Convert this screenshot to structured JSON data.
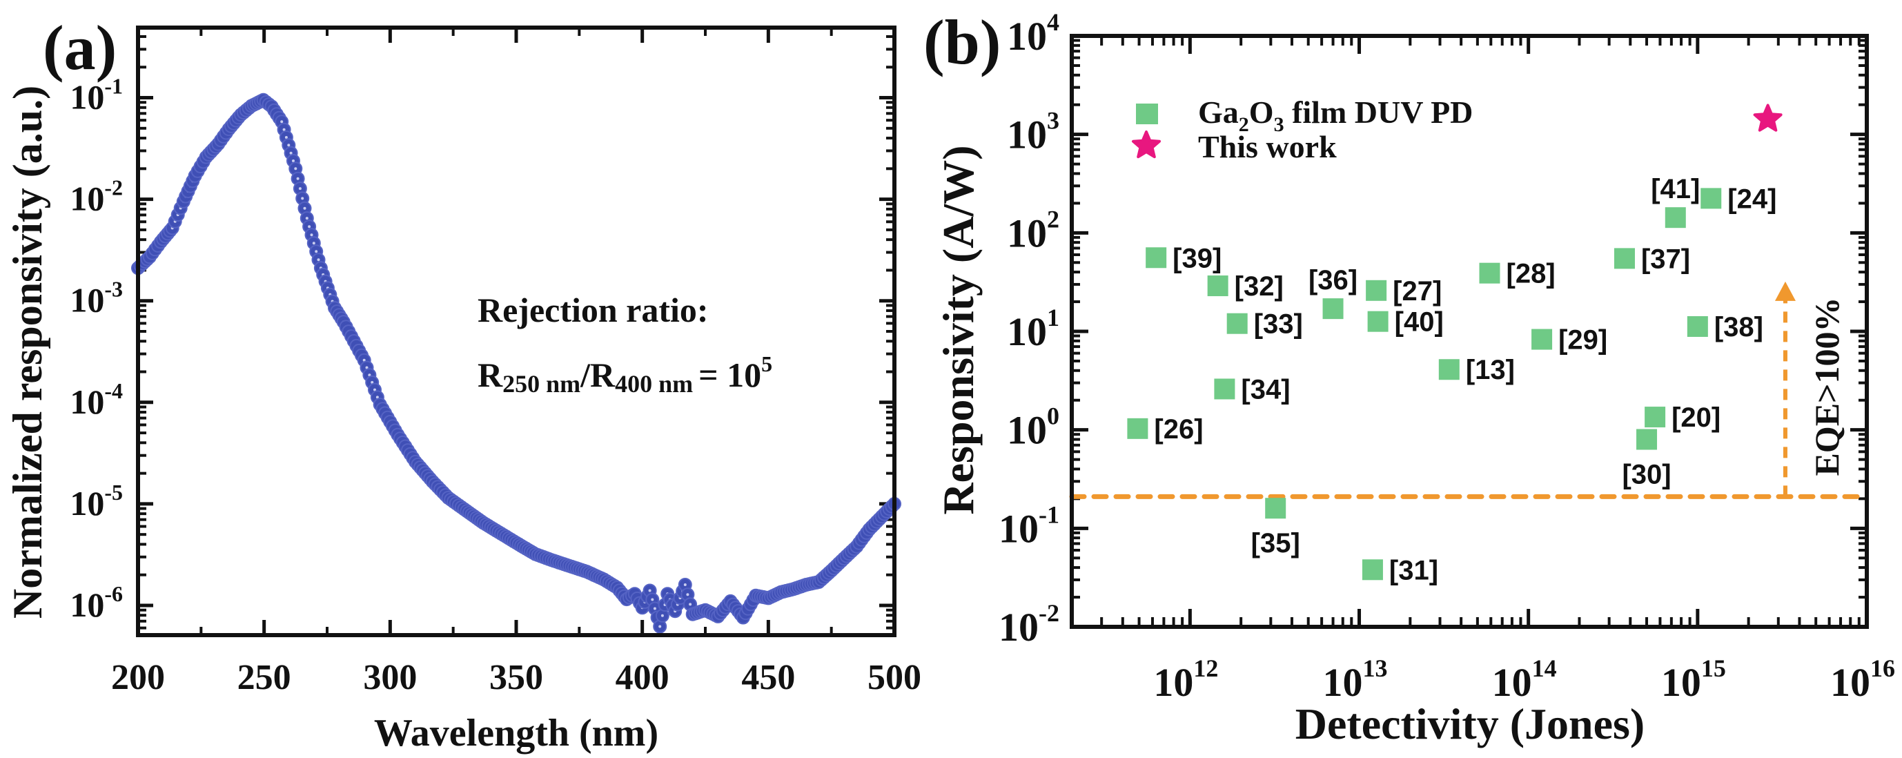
{
  "chart_data": [
    {
      "panel_label": "(a)",
      "type": "scatter",
      "title": "",
      "xlabel": "Wavelength (nm)",
      "ylabel": "Normalized responsivity (a.u.)",
      "xscale": "linear",
      "yscale": "log",
      "xlim": [
        200,
        500
      ],
      "ylim": [
        5.1e-07,
        0.49
      ],
      "xticks": [
        200,
        250,
        300,
        350,
        400,
        450,
        500
      ],
      "xtick_labels": [
        "200",
        "250",
        "300",
        "350",
        "400",
        "450",
        "500"
      ],
      "yticks": [
        1e-06,
        1e-05,
        0.0001,
        0.001,
        0.01,
        0.1
      ],
      "ytick_labels": [
        {
          "base": "10",
          "exp": "-6"
        },
        {
          "base": "10",
          "exp": "-5"
        },
        {
          "base": "10",
          "exp": "-4"
        },
        {
          "base": "10",
          "exp": "-3"
        },
        {
          "base": "10",
          "exp": "-2"
        },
        {
          "base": "10",
          "exp": "-1"
        }
      ],
      "grid": false,
      "marker_color": "#3f4fb5",
      "series": [
        {
          "name": "Normalized responsivity",
          "x": [
            200,
            204.6,
            209,
            213.6,
            218,
            222.6,
            227,
            231.8,
            236,
            240.8,
            245,
            249.7,
            253,
            257,
            262.5,
            267,
            272.5,
            278,
            281.5,
            289.7,
            296,
            303,
            310,
            316.8,
            323,
            330.4,
            337,
            344,
            351,
            357.6,
            364,
            371,
            378,
            384.8,
            390,
            393.8,
            397,
            400,
            403,
            407,
            410,
            413,
            417,
            420,
            425,
            430,
            435,
            440,
            445,
            450,
            455,
            460,
            465,
            470,
            475,
            480,
            485,
            490,
            495,
            500
          ],
          "y": [
            0.0021,
            0.0027,
            0.0038,
            0.0052,
            0.0095,
            0.017,
            0.026,
            0.035,
            0.049,
            0.068,
            0.083,
            0.095,
            0.082,
            0.058,
            0.02,
            0.0065,
            0.0021,
            0.00085,
            0.00062,
            0.00026,
            9.5e-05,
            4.8e-05,
            2.6e-05,
            1.66e-05,
            1.15e-05,
            8.5e-06,
            6.5e-06,
            5.1e-06,
            4e-06,
            3.2e-06,
            2.8e-06,
            2.45e-06,
            2.15e-06,
            1.8e-06,
            1.5e-06,
            1.15e-06,
            1.3e-06,
            9.5e-07,
            1.4e-06,
            6.2e-07,
            1.3e-06,
            8.8e-07,
            1.6e-06,
            8.2e-07,
            9e-07,
            7.8e-07,
            1.1e-06,
            7.6e-07,
            1.25e-06,
            1.18e-06,
            1.35e-06,
            1.45e-06,
            1.6e-06,
            1.7e-06,
            2.2e-06,
            2.9e-06,
            3.8e-06,
            5.6e-06,
            7.5e-06,
            1e-05
          ]
        }
      ],
      "annotations": [
        {
          "text": "Rejection ratio:"
        },
        {
          "text": "R250 nm/R400 nm = 10^5",
          "parts": {
            "r1": "R",
            "r1_sub": "250 nm",
            "slash": "/",
            "r2": "R",
            "r2_sub": "400 nm",
            "eq": "= 10",
            "exp": "5"
          }
        }
      ]
    },
    {
      "panel_label": "(b)",
      "type": "scatter",
      "title": "",
      "xlabel": "Detectivity (Jones)",
      "ylabel": "Responsivity (A/W)",
      "xscale": "log",
      "yscale": "log",
      "xlim": [
        200000000000.0,
        1e+16
      ],
      "ylim": [
        0.01,
        10000
      ],
      "xticks": [
        1000000000000.0,
        10000000000000.0,
        100000000000000.0,
        1000000000000000.0,
        1e+16
      ],
      "xtick_labels": [
        {
          "base": "10",
          "exp": "12"
        },
        {
          "base": "10",
          "exp": "13"
        },
        {
          "base": "10",
          "exp": "14"
        },
        {
          "base": "10",
          "exp": "15"
        },
        {
          "base": "10",
          "exp": "16"
        }
      ],
      "yticks": [
        0.01,
        0.1,
        1,
        10,
        100,
        1000,
        10000
      ],
      "ytick_labels": [
        {
          "base": "10",
          "exp": "-2"
        },
        {
          "base": "10",
          "exp": "-1"
        },
        {
          "base": "10",
          "exp": "0"
        },
        {
          "base": "10",
          "exp": "1"
        },
        {
          "base": "10",
          "exp": "2"
        },
        {
          "base": "10",
          "exp": "3"
        },
        {
          "base": "10",
          "exp": "4"
        }
      ],
      "grid": false,
      "legend_position": "top-left",
      "legend": [
        {
          "name": "Ga2O3 film DUV PD",
          "parts": {
            "a": "Ga",
            "s1": "2",
            "b": "O",
            "s2": "3",
            "c": " film DUV PD"
          },
          "marker": "square",
          "color": "#6fca86"
        },
        {
          "name": "This work",
          "marker": "star",
          "color": "#e8177f"
        }
      ],
      "series": [
        {
          "name": "Ga2O3 film DUV PD",
          "marker": "square",
          "color": "#6fca86",
          "points": [
            {
              "ref": "[39]",
              "x": 630000000000.0,
              "y": 56,
              "label_pos": "right"
            },
            {
              "ref": "[32]",
              "x": 1460000000000.0,
              "y": 29,
              "label_pos": "right"
            },
            {
              "ref": "[33]",
              "x": 1900000000000.0,
              "y": 12,
              "label_pos": "right"
            },
            {
              "ref": "[34]",
              "x": 1600000000000.0,
              "y": 2.6,
              "label_pos": "right"
            },
            {
              "ref": "[26]",
              "x": 490000000000.0,
              "y": 1.03,
              "label_pos": "right"
            },
            {
              "ref": "[35]",
              "x": 3200000000000.0,
              "y": 0.16,
              "label_pos": "below"
            },
            {
              "ref": "[36]",
              "x": 7000000000000.0,
              "y": 17,
              "label_pos": "above"
            },
            {
              "ref": "[27]",
              "x": 12600000000000.0,
              "y": 26,
              "label_pos": "right"
            },
            {
              "ref": "[40]",
              "x": 12900000000000.0,
              "y": 12.6,
              "label_pos": "right"
            },
            {
              "ref": "[31]",
              "x": 12000000000000.0,
              "y": 0.038,
              "label_pos": "right"
            },
            {
              "ref": "[13]",
              "x": 34000000000000.0,
              "y": 4.1,
              "label_pos": "right"
            },
            {
              "ref": "[28]",
              "x": 59000000000000.0,
              "y": 39,
              "label_pos": "right"
            },
            {
              "ref": "[29]",
              "x": 120000000000000.0,
              "y": 8.3,
              "label_pos": "right"
            },
            {
              "ref": "[37]",
              "x": 370000000000000.0,
              "y": 55,
              "label_pos": "right"
            },
            {
              "ref": "[41]",
              "x": 740000000000000.0,
              "y": 143,
              "label_pos": "above"
            },
            {
              "ref": "[24]",
              "x": 1200000000000000.0,
              "y": 224,
              "label_pos": "right"
            },
            {
              "ref": "[38]",
              "x": 1000000000000000.0,
              "y": 11.2,
              "label_pos": "right"
            },
            {
              "ref": "[20]",
              "x": 560000000000000.0,
              "y": 1.35,
              "label_pos": "right"
            },
            {
              "ref": "[30]",
              "x": 500000000000000.0,
              "y": 0.8,
              "label_pos": "below"
            }
          ]
        },
        {
          "name": "This work",
          "marker": "star",
          "color": "#e8177f",
          "points": [
            {
              "x": 2600000000000000.0,
              "y": 1430
            }
          ]
        }
      ],
      "reference_lines": [
        {
          "type": "horizontal",
          "y": 0.21,
          "style": "dashed",
          "color": "#f0982e"
        },
        {
          "type": "vertical-arrow",
          "x": 3300000000000000.0,
          "y_from": 0.21,
          "y_to": 31,
          "style": "dashed",
          "color": "#f0982e"
        }
      ],
      "annotations": [
        {
          "text": "EQE>100%",
          "orientation": "vertical"
        }
      ]
    }
  ]
}
